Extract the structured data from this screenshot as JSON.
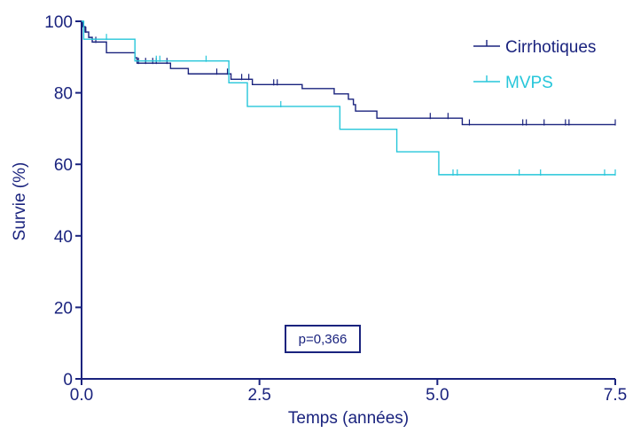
{
  "chart_data": {
    "type": "line",
    "subtype": "kaplan-meier step",
    "xlabel": "Temps (années)",
    "ylabel": "Survie (%)",
    "xlim": [
      0,
      7.5
    ],
    "ylim": [
      0,
      100
    ],
    "x_ticks": [
      0,
      2.5,
      5,
      7.5
    ],
    "x_tick_labels": [
      "0.0",
      "2.5",
      "5.0",
      "7.5"
    ],
    "y_ticks": [
      0,
      20,
      40,
      60,
      80,
      100
    ],
    "y_tick_labels": [
      "0",
      "20",
      "40",
      "60",
      "80",
      "100"
    ],
    "grid": false,
    "legend_position": "top-right",
    "annotation": "p=0,366",
    "series": [
      {
        "name": "Cirrhotiques",
        "color": "#1a237e",
        "steps": [
          [
            0,
            100
          ],
          [
            0.02,
            98.5
          ],
          [
            0.05,
            97
          ],
          [
            0.1,
            95.5
          ],
          [
            0.15,
            94.2
          ],
          [
            0.35,
            91.2
          ],
          [
            0.75,
            89.8
          ],
          [
            0.78,
            88.3
          ],
          [
            1.25,
            86.8
          ],
          [
            1.5,
            85.3
          ],
          [
            2.1,
            83.8
          ],
          [
            2.4,
            82.3
          ],
          [
            3.1,
            81.2
          ],
          [
            3.55,
            79.7
          ],
          [
            3.75,
            78.2
          ],
          [
            3.82,
            76.7
          ],
          [
            3.85,
            74.9
          ],
          [
            4.15,
            72.9
          ],
          [
            5.35,
            71.1
          ],
          [
            7.5,
            71.1
          ]
        ],
        "censored": [
          [
            0.06,
            97
          ],
          [
            0.2,
            94.2
          ],
          [
            0.8,
            88.3
          ],
          [
            0.9,
            88.3
          ],
          [
            1.0,
            88.3
          ],
          [
            1.05,
            88.3
          ],
          [
            1.2,
            88.3
          ],
          [
            1.9,
            85.3
          ],
          [
            2.05,
            85.3
          ],
          [
            2.25,
            83.8
          ],
          [
            2.35,
            83.8
          ],
          [
            2.7,
            82.3
          ],
          [
            2.75,
            82.3
          ],
          [
            4.9,
            72.9
          ],
          [
            5.15,
            72.9
          ],
          [
            5.45,
            71.1
          ],
          [
            6.2,
            71.1
          ],
          [
            6.25,
            71.1
          ],
          [
            6.5,
            71.1
          ],
          [
            6.8,
            71.1
          ],
          [
            6.85,
            71.1
          ],
          [
            7.5,
            71.1
          ]
        ]
      },
      {
        "name": "MVPS",
        "color": "#26c6da",
        "steps": [
          [
            0,
            100
          ],
          [
            0.03,
            95
          ],
          [
            0.75,
            88.9
          ],
          [
            2.07,
            82.8
          ],
          [
            2.33,
            76.2
          ],
          [
            3.63,
            69.8
          ],
          [
            4.43,
            63.5
          ],
          [
            5.02,
            57.1
          ],
          [
            7.5,
            57.1
          ]
        ],
        "censored": [
          [
            0.35,
            95
          ],
          [
            1.05,
            88.9
          ],
          [
            1.1,
            88.9
          ],
          [
            1.75,
            88.9
          ],
          [
            2.8,
            76.2
          ],
          [
            5.22,
            57.1
          ],
          [
            5.28,
            57.1
          ],
          [
            6.15,
            57.1
          ],
          [
            6.45,
            57.1
          ],
          [
            7.35,
            57.1
          ],
          [
            7.5,
            57.1
          ]
        ]
      }
    ]
  }
}
